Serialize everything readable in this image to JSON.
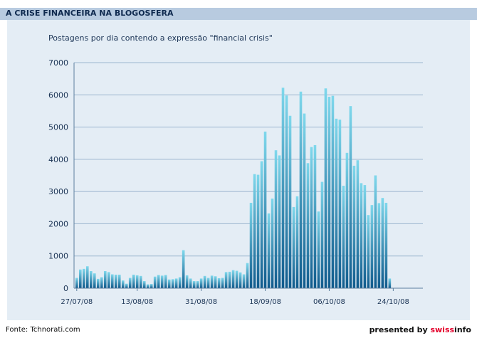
{
  "header": {
    "title": "A CRISE FINANCEIRA NA BLOGOSFERA"
  },
  "footer": {
    "source": "Fonte: Tchnorati.com",
    "credit_prefix": "presented by ",
    "credit_brand_a": "swiss",
    "credit_brand_b": "info"
  },
  "colors": {
    "header_band": "#b8cbe0",
    "panel": "#e4edf5",
    "bar_top": "#7fd8ec",
    "bar_bottom": "#0f5a8c",
    "grid": "#9cb6cf",
    "brand_accent": "#e4002b"
  },
  "chart_data": {
    "type": "bar",
    "title": "Postagens por dia contendo a expressão \"financial crisis\"",
    "xlabel": "",
    "ylabel": "",
    "ylim": [
      0,
      7000
    ],
    "yticks": [
      0,
      1000,
      2000,
      3000,
      4000,
      5000,
      6000,
      7000
    ],
    "grid": true,
    "x_tick_labels": [
      {
        "index": 0,
        "label": "27/07/08"
      },
      {
        "index": 17,
        "label": "13/08/08"
      },
      {
        "index": 35,
        "label": "31/08/08"
      },
      {
        "index": 53,
        "label": "18/09/08"
      },
      {
        "index": 71,
        "label": "06/10/08"
      },
      {
        "index": 89,
        "label": "24/10/08"
      }
    ],
    "values": [
      320,
      580,
      600,
      680,
      530,
      460,
      290,
      340,
      530,
      500,
      430,
      420,
      420,
      240,
      140,
      320,
      420,
      400,
      380,
      220,
      120,
      130,
      360,
      410,
      390,
      410,
      270,
      280,
      300,
      340,
      1180,
      400,
      300,
      220,
      220,
      300,
      380,
      320,
      390,
      370,
      310,
      320,
      500,
      510,
      560,
      540,
      490,
      430,
      780,
      2650,
      3540,
      3520,
      3940,
      4860,
      2320,
      2780,
      4280,
      4120,
      6220,
      5980,
      5350,
      2520,
      2850,
      6100,
      5420,
      3880,
      4380,
      4440,
      2380,
      3300,
      6200,
      5940,
      5970,
      5260,
      5230,
      3180,
      4200,
      5650,
      3800,
      3970,
      3260,
      3200,
      2270,
      2580,
      3500,
      2640,
      2800,
      2650,
      300
    ]
  }
}
